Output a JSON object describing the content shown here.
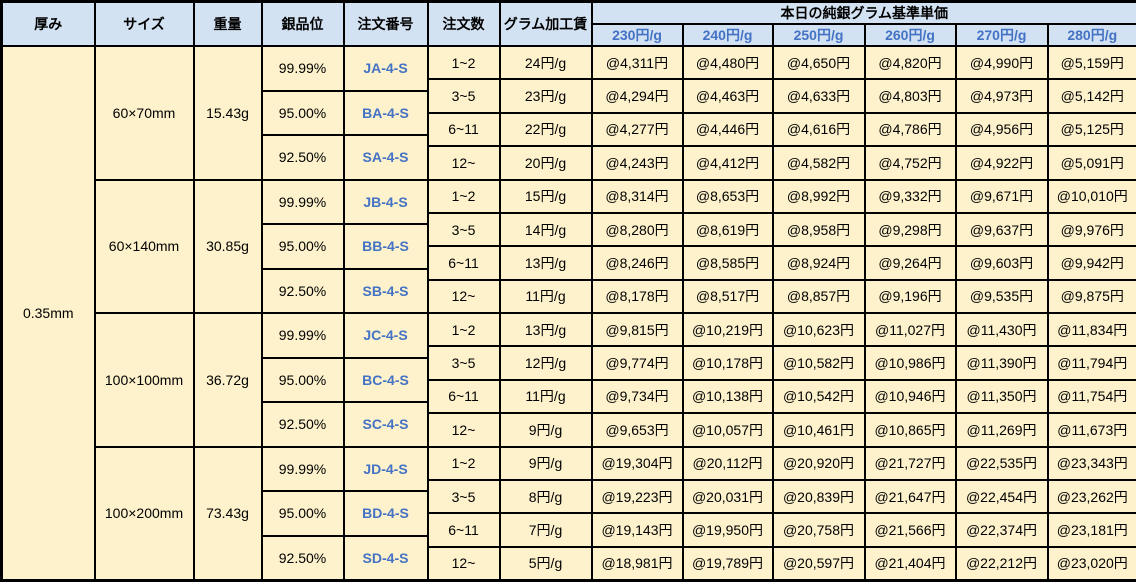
{
  "colors": {
    "header_bg": "#D2E2F2",
    "body_bg": "#FDF2CC",
    "accent_blue": "#4472C4",
    "border": "#000000"
  },
  "table": {
    "columns": {
      "thickness": "厚み",
      "size": "サイズ",
      "weight": "重量",
      "purity": "銀品位",
      "order_no": "注文番号",
      "order_qty": "注文数",
      "fee": "グラム加工賃"
    },
    "price_header": {
      "title": "本日の純銀グラム基準単価",
      "tiers": [
        "230円/g",
        "240円/g",
        "250円/g",
        "260円/g",
        "270円/g",
        "280円/g"
      ]
    },
    "thickness_value": "0.35mm",
    "groups": [
      {
        "size": "60×70mm",
        "weight": "15.43g",
        "purities": [
          {
            "purity": "99.99%",
            "order_no": "JA-4-S"
          },
          {
            "purity": "95.00%",
            "order_no": "BA-4-S"
          },
          {
            "purity": "92.50%",
            "order_no": "SA-4-S"
          }
        ],
        "qty_rows": [
          {
            "qty": "1~2",
            "fee": "24円/g",
            "prices": [
              "@4,311円",
              "@4,480円",
              "@4,650円",
              "@4,820円",
              "@4,990円",
              "@5,159円"
            ]
          },
          {
            "qty": "3~5",
            "fee": "23円/g",
            "prices": [
              "@4,294円",
              "@4,463円",
              "@4,633円",
              "@4,803円",
              "@4,973円",
              "@5,142円"
            ]
          },
          {
            "qty": "6~11",
            "fee": "22円/g",
            "prices": [
              "@4,277円",
              "@4,446円",
              "@4,616円",
              "@4,786円",
              "@4,956円",
              "@5,125円"
            ]
          },
          {
            "qty": "12~",
            "fee": "20円/g",
            "prices": [
              "@4,243円",
              "@4,412円",
              "@4,582円",
              "@4,752円",
              "@4,922円",
              "@5,091円"
            ]
          }
        ]
      },
      {
        "size": "60×140mm",
        "weight": "30.85g",
        "purities": [
          {
            "purity": "99.99%",
            "order_no": "JB-4-S"
          },
          {
            "purity": "95.00%",
            "order_no": "BB-4-S"
          },
          {
            "purity": "92.50%",
            "order_no": "SB-4-S"
          }
        ],
        "qty_rows": [
          {
            "qty": "1~2",
            "fee": "15円/g",
            "prices": [
              "@8,314円",
              "@8,653円",
              "@8,992円",
              "@9,332円",
              "@9,671円",
              "@10,010円"
            ]
          },
          {
            "qty": "3~5",
            "fee": "14円/g",
            "prices": [
              "@8,280円",
              "@8,619円",
              "@8,958円",
              "@9,298円",
              "@9,637円",
              "@9,976円"
            ]
          },
          {
            "qty": "6~11",
            "fee": "13円/g",
            "prices": [
              "@8,246円",
              "@8,585円",
              "@8,924円",
              "@9,264円",
              "@9,603円",
              "@9,942円"
            ]
          },
          {
            "qty": "12~",
            "fee": "11円/g",
            "prices": [
              "@8,178円",
              "@8,517円",
              "@8,857円",
              "@9,196円",
              "@9,535円",
              "@9,875円"
            ]
          }
        ]
      },
      {
        "size": "100×100mm",
        "weight": "36.72g",
        "purities": [
          {
            "purity": "99.99%",
            "order_no": "JC-4-S"
          },
          {
            "purity": "95.00%",
            "order_no": "BC-4-S"
          },
          {
            "purity": "92.50%",
            "order_no": "SC-4-S"
          }
        ],
        "qty_rows": [
          {
            "qty": "1~2",
            "fee": "13円/g",
            "prices": [
              "@9,815円",
              "@10,219円",
              "@10,623円",
              "@11,027円",
              "@11,430円",
              "@11,834円"
            ]
          },
          {
            "qty": "3~5",
            "fee": "12円/g",
            "prices": [
              "@9,774円",
              "@10,178円",
              "@10,582円",
              "@10,986円",
              "@11,390円",
              "@11,794円"
            ]
          },
          {
            "qty": "6~11",
            "fee": "11円/g",
            "prices": [
              "@9,734円",
              "@10,138円",
              "@10,542円",
              "@10,946円",
              "@11,350円",
              "@11,754円"
            ]
          },
          {
            "qty": "12~",
            "fee": "9円/g",
            "prices": [
              "@9,653円",
              "@10,057円",
              "@10,461円",
              "@10,865円",
              "@11,269円",
              "@11,673円"
            ]
          }
        ]
      },
      {
        "size": "100×200mm",
        "weight": "73.43g",
        "purities": [
          {
            "purity": "99.99%",
            "order_no": "JD-4-S"
          },
          {
            "purity": "95.00%",
            "order_no": "BD-4-S"
          },
          {
            "purity": "92.50%",
            "order_no": "SD-4-S"
          }
        ],
        "qty_rows": [
          {
            "qty": "1~2",
            "fee": "9円/g",
            "prices": [
              "@19,304円",
              "@20,112円",
              "@20,920円",
              "@21,727円",
              "@22,535円",
              "@23,343円"
            ]
          },
          {
            "qty": "3~5",
            "fee": "8円/g",
            "prices": [
              "@19,223円",
              "@20,031円",
              "@20,839円",
              "@21,647円",
              "@22,454円",
              "@23,262円"
            ]
          },
          {
            "qty": "6~11",
            "fee": "7円/g",
            "prices": [
              "@19,143円",
              "@19,950円",
              "@20,758円",
              "@21,566円",
              "@22,374円",
              "@23,181円"
            ]
          },
          {
            "qty": "12~",
            "fee": "5円/g",
            "prices": [
              "@18,981円",
              "@19,789円",
              "@20,597円",
              "@21,404円",
              "@22,212円",
              "@23,020円"
            ]
          }
        ]
      }
    ]
  }
}
